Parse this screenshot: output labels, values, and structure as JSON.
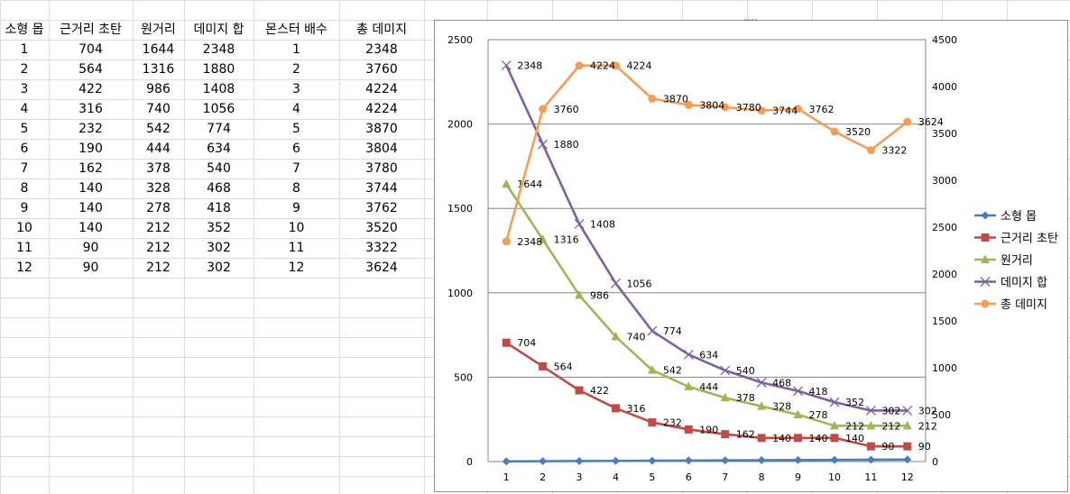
{
  "table": {
    "headers": [
      "소형 몹",
      "근거리 초탄",
      "원거리",
      "데미지 합",
      "몬스터 배수",
      "총 데미지"
    ],
    "rows": [
      [
        "1",
        "704",
        "1644",
        "2348",
        "1",
        "2348"
      ],
      [
        "2",
        "564",
        "1316",
        "1880",
        "2",
        "3760"
      ],
      [
        "3",
        "422",
        "986",
        "1408",
        "3",
        "4224"
      ],
      [
        "4",
        "316",
        "740",
        "1056",
        "4",
        "4224"
      ],
      [
        "5",
        "232",
        "542",
        "774",
        "5",
        "3870"
      ],
      [
        "6",
        "190",
        "444",
        "634",
        "6",
        "3804"
      ],
      [
        "7",
        "162",
        "378",
        "540",
        "7",
        "3780"
      ],
      [
        "8",
        "140",
        "328",
        "468",
        "8",
        "3744"
      ],
      [
        "9",
        "140",
        "278",
        "418",
        "9",
        "3762"
      ],
      [
        "10",
        "140",
        "212",
        "352",
        "10",
        "3520"
      ],
      [
        "11",
        "90",
        "212",
        "302",
        "11",
        "3322"
      ],
      [
        "12",
        "90",
        "212",
        "302",
        "12",
        "3624"
      ]
    ]
  },
  "chart_data": {
    "type": "line",
    "categories": [
      "1",
      "2",
      "3",
      "4",
      "5",
      "6",
      "7",
      "8",
      "9",
      "10",
      "11",
      "12"
    ],
    "ylim": [
      0,
      2500
    ],
    "y_ticks": [
      0,
      500,
      1000,
      1500,
      2000,
      2500
    ],
    "y2lim": [
      0,
      4500
    ],
    "y2_ticks": [
      0,
      500,
      1000,
      1500,
      2000,
      2500,
      3000,
      3500,
      4000,
      4500
    ],
    "grid": true,
    "legend_position": "right",
    "series": [
      {
        "name": "소형 몹",
        "axis": "left",
        "marker": "diamond",
        "color": "#4a7ebb",
        "labels": false,
        "values": [
          1,
          2,
          3,
          4,
          5,
          6,
          7,
          8,
          9,
          10,
          11,
          12
        ]
      },
      {
        "name": "근거리 초탄",
        "axis": "left",
        "marker": "square",
        "color": "#be4b48",
        "labels": true,
        "values": [
          704,
          564,
          422,
          316,
          232,
          190,
          162,
          140,
          140,
          140,
          90,
          90
        ]
      },
      {
        "name": "원거리",
        "axis": "left",
        "marker": "triangle",
        "color": "#98b954",
        "labels": true,
        "values": [
          1644,
          1316,
          986,
          740,
          542,
          444,
          378,
          328,
          278,
          212,
          212,
          212
        ]
      },
      {
        "name": "데미지 합",
        "axis": "left",
        "marker": "x",
        "color": "#7d60a0",
        "labels": true,
        "values": [
          2348,
          1880,
          1408,
          1056,
          774,
          634,
          540,
          468,
          418,
          352,
          302,
          302
        ]
      },
      {
        "name": "총 데미지",
        "axis": "right",
        "marker": "circle",
        "color": "#f59d56",
        "labels": true,
        "values": [
          2348,
          3760,
          4224,
          4224,
          3870,
          3804,
          3780,
          3744,
          3762,
          3520,
          3322,
          3624
        ]
      }
    ]
  }
}
